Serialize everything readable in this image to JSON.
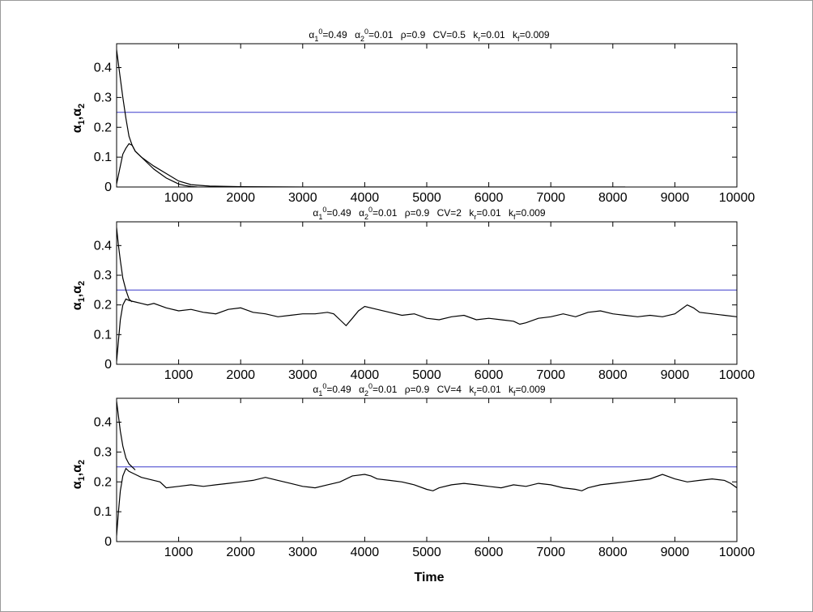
{
  "chart_data": [
    {
      "type": "line",
      "title_parts": {
        "alpha1_sym": "α",
        "alpha1_sub": "1",
        "alpha1_sup": "0",
        "alpha1_val": "=0.49",
        "alpha2_sym": "α",
        "alpha2_sub": "2",
        "alpha2_sup": "0",
        "alpha2_val": "=0.01",
        "rho": "ρ=0.9",
        "cv": "CV=0.5",
        "kr_sym": "k",
        "kr_sub": "r",
        "kr_val": "=0.01",
        "kf_sym": "k",
        "kf_sub": "f",
        "kf_val": "=0.009"
      },
      "ylabel": {
        "a1": "α",
        "a1_sub": "1",
        "sep": ",",
        "a2": "α",
        "a2_sub": "2"
      },
      "xlabel": "",
      "xlim": [
        0,
        10000
      ],
      "ylim": [
        0,
        0.48
      ],
      "xticks": [
        "1000",
        "2000",
        "3000",
        "4000",
        "5000",
        "6000",
        "7000",
        "8000",
        "9000",
        "10000"
      ],
      "xtick_values": [
        1000,
        2000,
        3000,
        4000,
        5000,
        6000,
        7000,
        8000,
        9000,
        10000
      ],
      "yticks": [
        "0",
        "0.1",
        "0.2",
        "0.3",
        "0.4"
      ],
      "ytick_values": [
        0,
        0.1,
        0.2,
        0.3,
        0.4
      ],
      "series": [
        {
          "color": "#3a3acc",
          "x": [
            0,
            10000
          ],
          "y": [
            0.25,
            0.25
          ]
        },
        {
          "color": "#000000",
          "x": [
            0,
            50,
            100,
            150,
            200,
            250,
            300,
            400,
            500,
            600,
            800,
            1000,
            1200,
            1500,
            2000,
            3000,
            4000,
            5000,
            6000,
            7000,
            8000,
            8200
          ],
          "y": [
            0.46,
            0.38,
            0.3,
            0.23,
            0.17,
            0.14,
            0.12,
            0.1,
            0.085,
            0.07,
            0.045,
            0.02,
            0.008,
            0.003,
            0.001,
            0.0,
            0.0,
            0.0,
            0.0,
            0.0,
            0.0,
            0.0
          ]
        },
        {
          "color": "#000000",
          "x": [
            0,
            50,
            100,
            150,
            200,
            250,
            300,
            350,
            400,
            500,
            600,
            700,
            800,
            900,
            1000,
            1100,
            1200,
            1300
          ],
          "y": [
            0.01,
            0.06,
            0.11,
            0.13,
            0.145,
            0.14,
            0.12,
            0.11,
            0.1,
            0.08,
            0.06,
            0.045,
            0.03,
            0.02,
            0.01,
            0.005,
            0.002,
            0.0
          ]
        }
      ]
    },
    {
      "type": "line",
      "title_parts": {
        "alpha1_sym": "α",
        "alpha1_sub": "1",
        "alpha1_sup": "0",
        "alpha1_val": "=0.49",
        "alpha2_sym": "α",
        "alpha2_sub": "2",
        "alpha2_sup": "0",
        "alpha2_val": "=0.01",
        "rho": "ρ=0.9",
        "cv": "CV=2",
        "kr_sym": "k",
        "kr_sub": "r",
        "kr_val": "=0.01",
        "kf_sym": "k",
        "kf_sub": "f",
        "kf_val": "=0.009"
      },
      "ylabel": {
        "a1": "α",
        "a1_sub": "1",
        "sep": ",",
        "a2": "α",
        "a2_sub": "2"
      },
      "xlabel": "",
      "xlim": [
        0,
        10000
      ],
      "ylim": [
        0,
        0.48
      ],
      "xticks": [
        "1000",
        "2000",
        "3000",
        "4000",
        "5000",
        "6000",
        "7000",
        "8000",
        "9000",
        "10000"
      ],
      "xtick_values": [
        1000,
        2000,
        3000,
        4000,
        5000,
        6000,
        7000,
        8000,
        9000,
        10000
      ],
      "yticks": [
        "0",
        "0.1",
        "0.2",
        "0.3",
        "0.4"
      ],
      "ytick_values": [
        0,
        0.1,
        0.2,
        0.3,
        0.4
      ],
      "series": [
        {
          "color": "#3a3acc",
          "x": [
            0,
            10000
          ],
          "y": [
            0.25,
            0.25
          ]
        },
        {
          "color": "#000000",
          "x": [
            0,
            30,
            60,
            100,
            150,
            200,
            250
          ],
          "y": [
            0.46,
            0.4,
            0.35,
            0.29,
            0.25,
            0.22,
            0.21
          ]
        },
        {
          "color": "#000000",
          "x": [
            0,
            30,
            60,
            100,
            150,
            200,
            300,
            400,
            500,
            600,
            800,
            1000,
            1200,
            1400,
            1600,
            1800,
            2000,
            2200,
            2400,
            2600,
            2800,
            3000,
            3200,
            3400,
            3500,
            3600,
            3700,
            3800,
            3900,
            4000,
            4200,
            4400,
            4600,
            4800,
            5000,
            5200,
            5400,
            5600,
            5800,
            6000,
            6200,
            6400,
            6500,
            6600,
            6800,
            7000,
            7200,
            7400,
            7600,
            7800,
            8000,
            8200,
            8400,
            8600,
            8800,
            9000,
            9200,
            9300,
            9400,
            9600,
            9800,
            10000
          ],
          "y": [
            0.01,
            0.08,
            0.15,
            0.2,
            0.22,
            0.215,
            0.21,
            0.205,
            0.2,
            0.205,
            0.19,
            0.18,
            0.185,
            0.175,
            0.17,
            0.185,
            0.19,
            0.175,
            0.17,
            0.16,
            0.165,
            0.17,
            0.17,
            0.175,
            0.17,
            0.15,
            0.13,
            0.155,
            0.18,
            0.195,
            0.185,
            0.175,
            0.165,
            0.17,
            0.155,
            0.15,
            0.16,
            0.165,
            0.15,
            0.155,
            0.15,
            0.145,
            0.135,
            0.14,
            0.155,
            0.16,
            0.17,
            0.16,
            0.175,
            0.18,
            0.17,
            0.165,
            0.16,
            0.165,
            0.16,
            0.17,
            0.2,
            0.19,
            0.175,
            0.17,
            0.165,
            0.16
          ]
        }
      ]
    },
    {
      "type": "line",
      "title_parts": {
        "alpha1_sym": "α",
        "alpha1_sub": "1",
        "alpha1_sup": "0",
        "alpha1_val": "=0.49",
        "alpha2_sym": "α",
        "alpha2_sub": "2",
        "alpha2_sup": "0",
        "alpha2_val": "=0.01",
        "rho": "ρ=0.9",
        "cv": "CV=4",
        "kr_sym": "k",
        "kr_sub": "r",
        "kr_val": "=0.01",
        "kf_sym": "k",
        "kf_sub": "f",
        "kf_val": "=0.009"
      },
      "ylabel": {
        "a1": "α",
        "a1_sub": "1",
        "sep": ",",
        "a2": "α",
        "a2_sub": "2"
      },
      "xlabel": "Time",
      "xlim": [
        0,
        10000
      ],
      "ylim": [
        0,
        0.48
      ],
      "xticks": [
        "1000",
        "2000",
        "3000",
        "4000",
        "5000",
        "6000",
        "7000",
        "8000",
        "9000",
        "10000"
      ],
      "xtick_values": [
        1000,
        2000,
        3000,
        4000,
        5000,
        6000,
        7000,
        8000,
        9000,
        10000
      ],
      "yticks": [
        "0",
        "0.1",
        "0.2",
        "0.3",
        "0.4"
      ],
      "ytick_values": [
        0,
        0.1,
        0.2,
        0.3,
        0.4
      ],
      "series": [
        {
          "color": "#3a3acc",
          "x": [
            0,
            10000
          ],
          "y": [
            0.25,
            0.25
          ]
        },
        {
          "color": "#000000",
          "x": [
            0,
            30,
            60,
            100,
            150,
            200,
            250,
            300
          ],
          "y": [
            0.47,
            0.42,
            0.37,
            0.32,
            0.28,
            0.26,
            0.25,
            0.24
          ]
        },
        {
          "color": "#000000",
          "x": [
            0,
            30,
            60,
            100,
            150,
            200,
            300,
            400,
            500,
            600,
            700,
            800,
            1000,
            1200,
            1400,
            1600,
            1800,
            2000,
            2200,
            2400,
            2600,
            2800,
            3000,
            3200,
            3400,
            3600,
            3800,
            4000,
            4100,
            4200,
            4400,
            4600,
            4800,
            5000,
            5100,
            5200,
            5400,
            5600,
            5800,
            6000,
            6200,
            6400,
            6600,
            6800,
            7000,
            7200,
            7400,
            7500,
            7600,
            7800,
            8000,
            8200,
            8400,
            8600,
            8800,
            9000,
            9200,
            9400,
            9600,
            9800,
            9900,
            10000
          ],
          "y": [
            0.02,
            0.1,
            0.17,
            0.22,
            0.245,
            0.235,
            0.225,
            0.215,
            0.21,
            0.205,
            0.2,
            0.18,
            0.185,
            0.19,
            0.185,
            0.19,
            0.195,
            0.2,
            0.205,
            0.215,
            0.205,
            0.195,
            0.185,
            0.18,
            0.19,
            0.2,
            0.22,
            0.225,
            0.22,
            0.21,
            0.205,
            0.2,
            0.19,
            0.175,
            0.17,
            0.18,
            0.19,
            0.195,
            0.19,
            0.185,
            0.18,
            0.19,
            0.185,
            0.195,
            0.19,
            0.18,
            0.175,
            0.17,
            0.18,
            0.19,
            0.195,
            0.2,
            0.205,
            0.21,
            0.225,
            0.21,
            0.2,
            0.205,
            0.21,
            0.205,
            0.195,
            0.18
          ]
        }
      ]
    }
  ]
}
